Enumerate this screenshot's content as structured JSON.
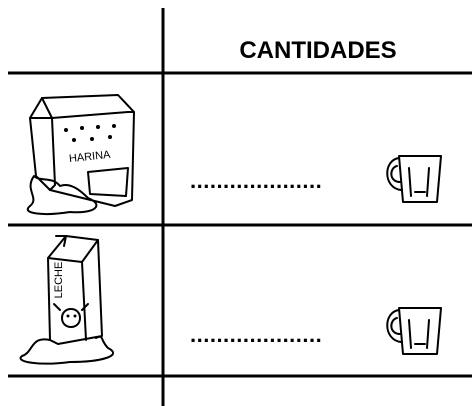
{
  "header": {
    "title": "CANTIDADES"
  },
  "rows": [
    {
      "product": "HARINA",
      "answer": "...................."
    },
    {
      "product": "LECHE",
      "answer": "...................."
    }
  ]
}
